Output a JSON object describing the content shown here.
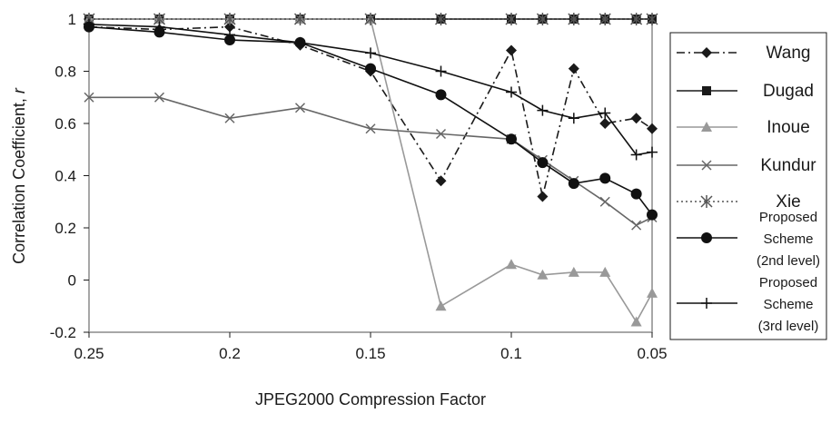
{
  "chart_data": {
    "type": "line",
    "xlabel": "JPEG2000 Compression Factor",
    "ylabel": "Correlation Coefficient, r",
    "ylabel_main": "Correlation Coefficient, ",
    "ylabel_var": "r",
    "xlim": [
      0.25,
      0.05
    ],
    "ylim": [
      -0.2,
      1.0
    ],
    "x_ticks": [
      0.25,
      0.2,
      0.15,
      0.1,
      0.05
    ],
    "x_tick_labels": [
      "0.25",
      "0.2",
      "0.15",
      "0.1",
      "0.05"
    ],
    "y_ticks": [
      -0.2,
      0,
      0.2,
      0.4,
      0.6,
      0.8,
      1.0
    ],
    "y_tick_labels": [
      "-0.2",
      "0",
      "0.2",
      "0.4",
      "0.6",
      "0.8",
      "1"
    ],
    "grid": false,
    "legend_position": "right",
    "x": [
      0.25,
      0.225,
      0.2,
      0.175,
      0.15,
      0.125,
      0.1,
      0.0889,
      0.0778,
      0.0667,
      0.0556,
      0.05
    ],
    "series": [
      {
        "name": "Wang",
        "label_lines": [
          "Wang"
        ],
        "marker": "diamond",
        "line": "dashdot",
        "color": "#1a1a1a",
        "values": [
          0.97,
          0.96,
          0.97,
          0.9,
          0.8,
          0.38,
          0.88,
          0.32,
          0.81,
          0.6,
          0.62,
          0.58
        ]
      },
      {
        "name": "Dugad",
        "label_lines": [
          "Dugad"
        ],
        "marker": "square",
        "line": "solid",
        "color": "#1a1a1a",
        "values": [
          1.0,
          1.0,
          1.0,
          1.0,
          1.0,
          1.0,
          1.0,
          1.0,
          1.0,
          1.0,
          1.0,
          1.0
        ]
      },
      {
        "name": "Inoue",
        "label_lines": [
          "Inoue"
        ],
        "marker": "triangle",
        "line": "solid",
        "color": "#999999",
        "values": [
          1.0,
          1.0,
          1.0,
          1.0,
          1.0,
          -0.1,
          0.06,
          0.02,
          0.03,
          0.03,
          -0.16,
          -0.05
        ]
      },
      {
        "name": "Kundur",
        "label_lines": [
          "Kundur"
        ],
        "marker": "x",
        "line": "solid",
        "color": "#666666",
        "values": [
          0.7,
          0.7,
          0.62,
          0.66,
          0.58,
          0.56,
          0.54,
          0.46,
          0.38,
          0.3,
          0.21,
          0.24
        ]
      },
      {
        "name": "Xie",
        "label_lines": [
          "Xie"
        ],
        "marker": "asterisk",
        "line": "dotted",
        "color": "#555555",
        "values": [
          1.0,
          1.0,
          1.0,
          1.0,
          1.0,
          1.0,
          1.0,
          1.0,
          1.0,
          1.0,
          1.0,
          1.0
        ]
      },
      {
        "name": "Proposed Scheme (2nd level)",
        "label_lines": [
          "Proposed",
          "Scheme",
          "(2nd level)"
        ],
        "marker": "circle",
        "line": "solid",
        "color": "#111111",
        "values": [
          0.97,
          0.95,
          0.92,
          0.91,
          0.81,
          0.71,
          0.54,
          0.45,
          0.37,
          0.39,
          0.33,
          0.25
        ]
      },
      {
        "name": "Proposed Scheme (3rd level)",
        "label_lines": [
          "Proposed",
          "Scheme",
          "(3rd level)"
        ],
        "marker": "plus",
        "line": "solid",
        "color": "#111111",
        "values": [
          0.98,
          0.97,
          0.94,
          0.91,
          0.87,
          0.8,
          0.72,
          0.65,
          0.62,
          0.64,
          0.48,
          0.49
        ]
      }
    ]
  }
}
